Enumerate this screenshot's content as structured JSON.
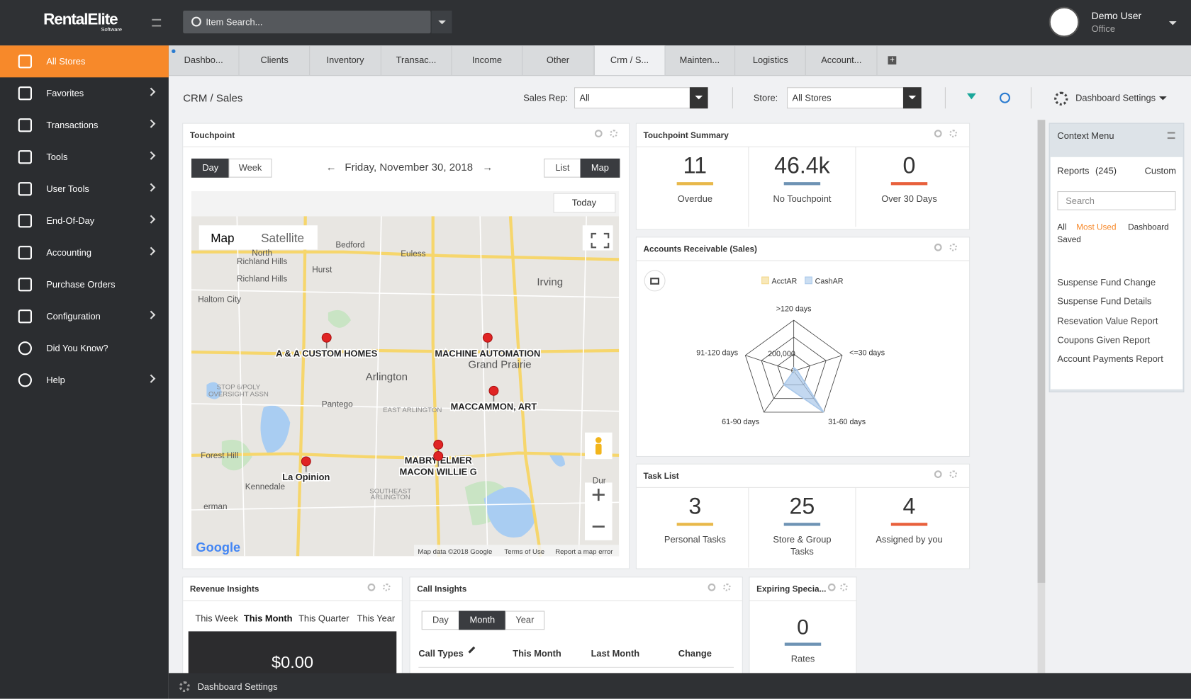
{
  "header": {
    "logo": "RentalElite",
    "logo_sub": "Software",
    "search_placeholder": "Item Search...",
    "user_name": "Demo User",
    "user_role": "Office"
  },
  "sidebar": {
    "items": [
      "All Stores",
      "Favorites",
      "Transactions",
      "Tools",
      "User Tools",
      "End-Of-Day",
      "Accounting",
      "Purchase Orders",
      "Configuration",
      "Did You Know?",
      "Help"
    ]
  },
  "tabs": [
    "Dashbo...",
    "Clients",
    "Inventory",
    "Transac...",
    "Income",
    "Other",
    "Crm / S...",
    "Mainten...",
    "Logistics",
    "Account..."
  ],
  "toolbar": {
    "title": "CRM / Sales",
    "sales_rep_label": "Sales Rep:",
    "sales_rep_value": "All",
    "store_label": "Store:",
    "store_value": "All Stores",
    "settings": "Dashboard Settings"
  },
  "touchpoint": {
    "title": "Touchpoint",
    "day": "Day",
    "week": "Week",
    "date": "Friday, November 30, 2018",
    "list": "List",
    "map": "Map",
    "today": "Today",
    "map_type": "Map",
    "satellite": "Satellite",
    "pins": [
      "A & A CUSTOM HOMES",
      "MACHINE AUTOMATION",
      "MACCAMMON, ART",
      "MABRY ELMER",
      "MACON WILLIE G",
      "La Opinion"
    ],
    "places": [
      "North",
      "Richland Hills",
      "Bedford",
      "Euless",
      "Hurst",
      "Irving",
      "Richland Hills",
      "Haltom City",
      "Arlington",
      "Grand Prairie",
      "Pantego",
      "EAST ARLINGTON",
      "Forest Hill",
      "Kennedale",
      "SOUTHEAST",
      "ARLINGTON",
      "STOP 6/POLY",
      "OVERSIGHT ASSN",
      "erman",
      "Dur"
    ],
    "google": "Google",
    "map_data": "Map data ©2018 Google",
    "terms": "Terms of Use",
    "report": "Report a map error"
  },
  "summary": {
    "title": "Touchpoint Summary",
    "stats": [
      {
        "value": 11,
        "label": "Overdue"
      },
      {
        "value": "46.4k",
        "label": "No Touchpoint"
      },
      {
        "value": 0,
        "label": "Over 30 Days"
      }
    ]
  },
  "chart_data": {
    "type": "radar",
    "title": "Accounts Receivable (Sales)",
    "categories": [
      ">120 days",
      "<=30 days",
      "31-60 days",
      "61-90 days",
      "91-120 days"
    ],
    "series": [
      {
        "name": "AcctAR",
        "color": "#f3d88a",
        "values": [
          5000,
          5000,
          20000,
          5000,
          5000
        ]
      },
      {
        "name": "CashAR",
        "color": "#a9c8ea",
        "values": [
          40000,
          40000,
          600000,
          200000,
          0
        ]
      }
    ],
    "ylim": [
      0,
      600000
    ],
    "yticks": [
      0,
      {
        "value": 200000,
        "label": "200,000"
      },
      400000,
      600000
    ],
    "tick_labels_shown": 2,
    "grid": true
  },
  "tasks": {
    "title": "Task List",
    "stats": [
      {
        "value": 3,
        "label": "Personal Tasks"
      },
      {
        "value": 25,
        "label": "Store & Group Tasks"
      },
      {
        "value": 4,
        "label": "Assigned by you"
      }
    ]
  },
  "revenue": {
    "title": "Revenue Insights",
    "periods": [
      "This Week",
      "This Month",
      "This Quarter",
      "This Year"
    ],
    "amount": "$0.00"
  },
  "calls": {
    "title": "Call Insights",
    "toggles": [
      "Day",
      "Month",
      "Year"
    ],
    "columns": [
      "Call Types",
      "This Month",
      "Last Month",
      "Change"
    ]
  },
  "expiring": {
    "title": "Expiring Specia...",
    "value": 0,
    "label": "Rates"
  },
  "context": {
    "title": "Context Menu",
    "reports": "Reports",
    "count": "(245)",
    "custom": "Custom",
    "search": "Search",
    "filters": [
      "All",
      "Most Used",
      "Dashboard",
      "Saved"
    ],
    "items": [
      "Suspense Fund Change",
      "Suspense Fund Details",
      "Resevation Value Report",
      "Coupons Given Report",
      "Account Payments Report"
    ]
  },
  "footer": {
    "settings": "Dashboard Settings"
  }
}
